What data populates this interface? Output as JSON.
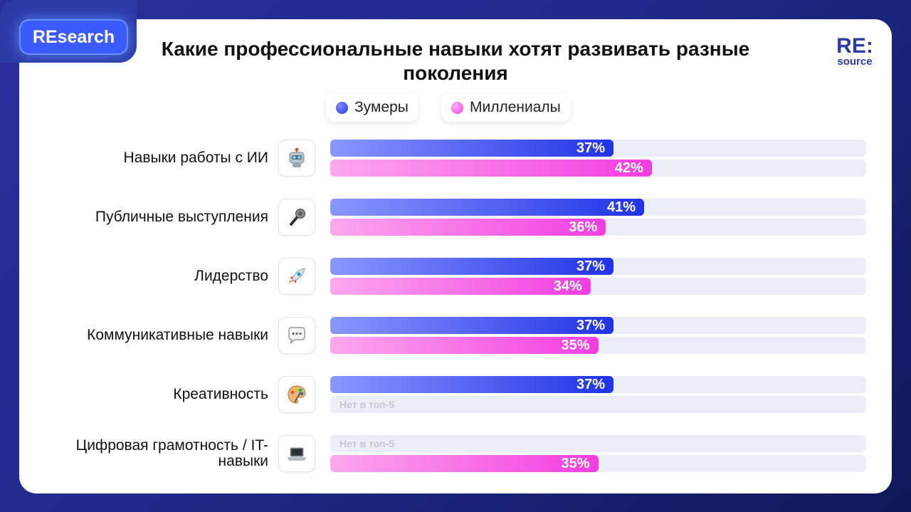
{
  "badge": "REsearch",
  "logo": {
    "top": "RE:",
    "bottom": "source"
  },
  "chart_data": {
    "type": "bar",
    "title": "Какие профессиональные навыки хотят развивать разные поколения",
    "xlim": [
      0,
      70
    ],
    "legend_placement": "top",
    "categories": [
      "Навыки работы с ИИ",
      "Публичные выступления",
      "Лидерство",
      "Коммуникативные навыки",
      "Креативность",
      "Цифровая грамотность / IT-навыки"
    ],
    "category_icons": [
      "robot-icon",
      "microphone-icon",
      "rocket-icon",
      "speech-bubble-icon",
      "palette-icon",
      "laptop-icon"
    ],
    "series": [
      {
        "name": "Зумеры",
        "color": "#2133e6",
        "values": [
          37,
          41,
          37,
          37,
          37,
          null
        ]
      },
      {
        "name": "Миллениалы",
        "color": "#f33de0",
        "values": [
          42,
          36,
          34,
          35,
          null,
          35
        ]
      }
    ],
    "missing_label": "Нет в топ-5"
  }
}
